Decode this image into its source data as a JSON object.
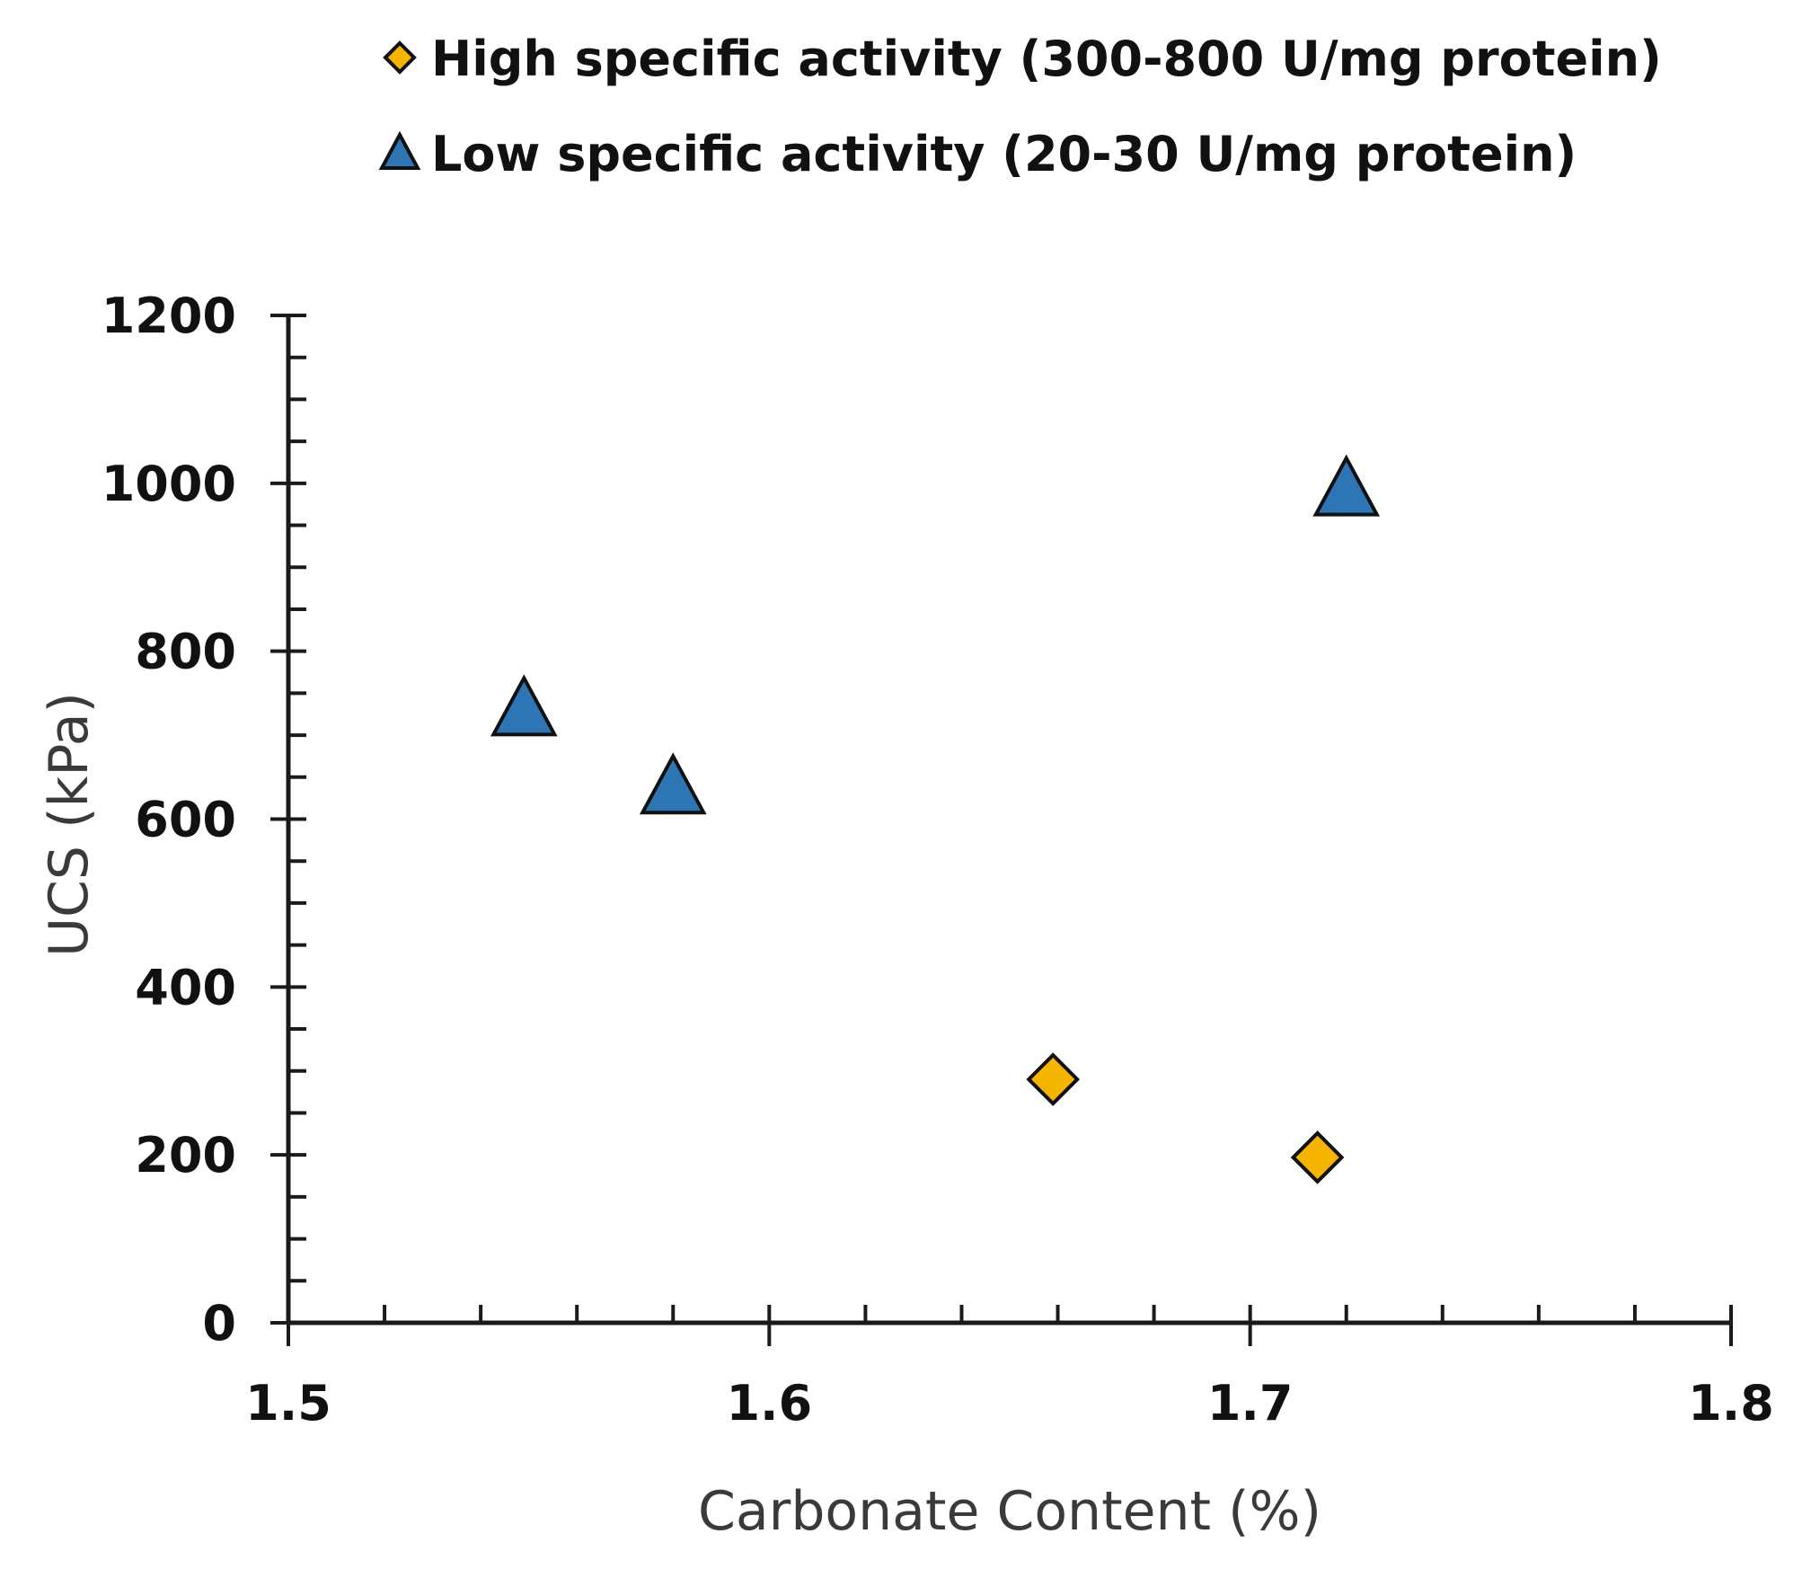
{
  "chart_data": {
    "type": "scatter",
    "title": "",
    "xlabel": "Carbonate Content (%)",
    "ylabel": "UCS (kPa)",
    "xlim": [
      1.5,
      1.8
    ],
    "ylim": [
      0,
      1200
    ],
    "xticks": [
      1.5,
      1.6,
      1.7,
      1.8
    ],
    "xtick_labels": [
      "1.5",
      "1.6",
      "1.7",
      "1.8"
    ],
    "yticks": [
      0,
      200,
      400,
      600,
      800,
      1000,
      1200
    ],
    "ytick_labels": [
      "0",
      "200",
      "400",
      "600",
      "800",
      "1000",
      "1200"
    ],
    "x_minor_step": 0.02,
    "y_minor_step": 50,
    "grid": false,
    "legend_position": "top",
    "series": [
      {
        "name": "High specific activity (300-800 U/mg protein)",
        "marker": "diamond",
        "color": "#f5b400",
        "x": [
          1.659,
          1.714
        ],
        "y": [
          290,
          197
        ]
      },
      {
        "name": "Low specific activity (20-30 U/mg protein)",
        "marker": "triangle",
        "color": "#2e75b6",
        "x": [
          1.549,
          1.58,
          1.72
        ],
        "y": [
          728,
          635,
          990
        ]
      }
    ]
  }
}
